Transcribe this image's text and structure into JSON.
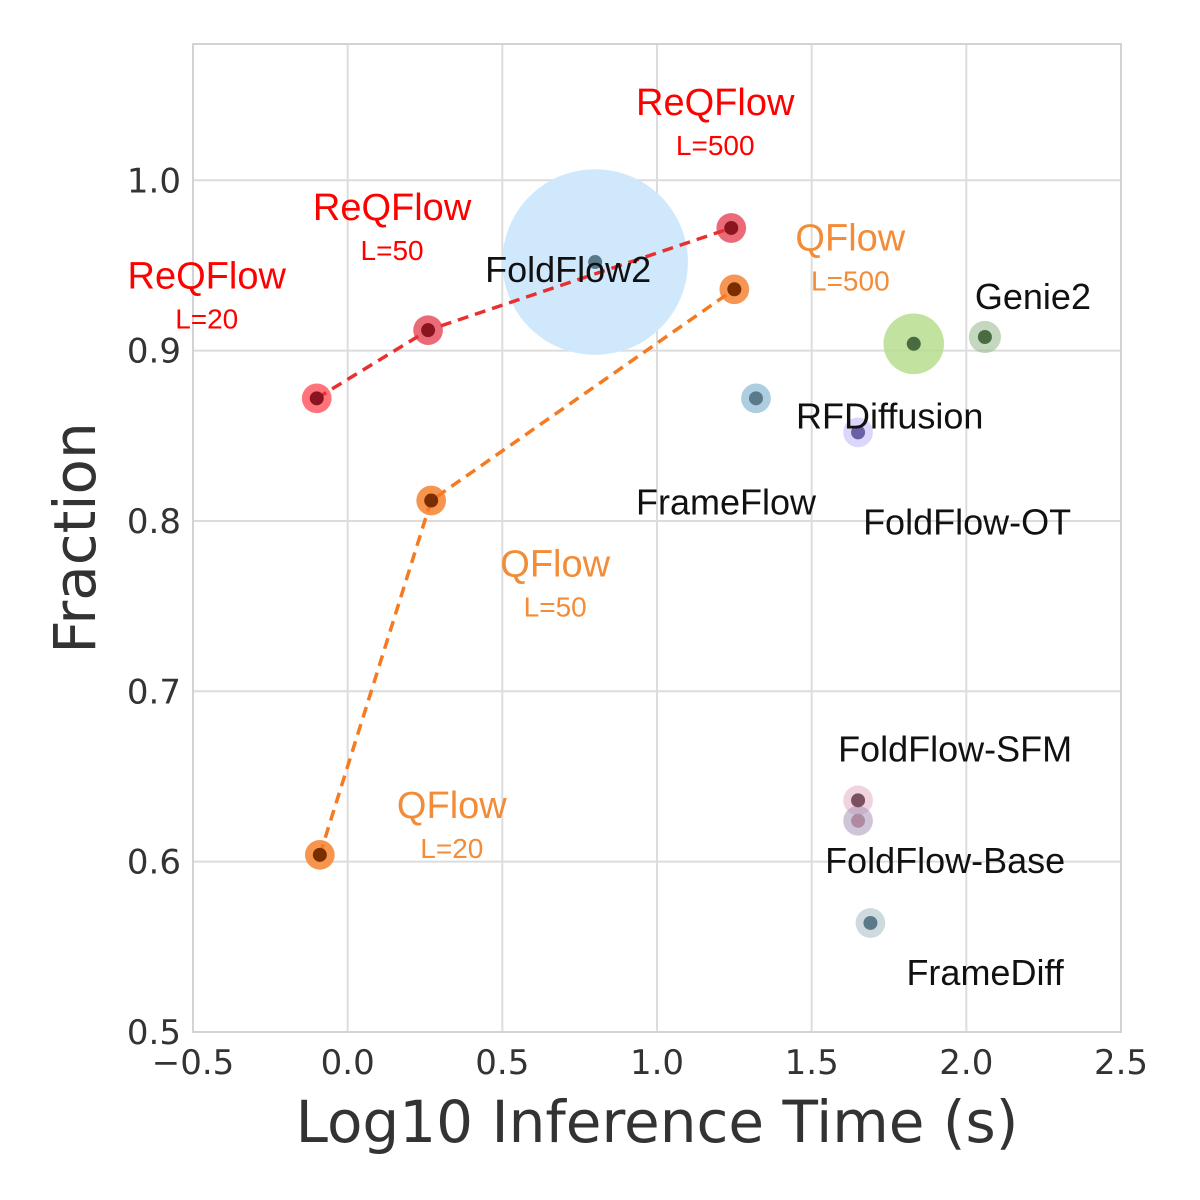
{
  "chart_data": {
    "type": "scatter",
    "title": "",
    "xlabel": "Log10 Inference Time (s)",
    "ylabel": "Fraction",
    "xlim": [
      -0.5,
      2.5
    ],
    "ylim": [
      0.5,
      1.08
    ],
    "xticks": [
      "−0.5",
      "0.0",
      "0.5",
      "1.0",
      "1.5",
      "2.0",
      "2.5"
    ],
    "xtick_values": [
      -0.5,
      0.0,
      0.5,
      1.0,
      1.5,
      2.0,
      2.5
    ],
    "yticks": [
      "0.5",
      "0.6",
      "0.7",
      "0.8",
      "0.9",
      "1.0"
    ],
    "ytick_values": [
      0.5,
      0.6,
      0.7,
      0.8,
      0.9,
      1.0
    ],
    "grid": true,
    "series_colors": {
      "reqflow": "#ff0000",
      "qflow": "#f28c38"
    },
    "lines": [
      {
        "series": "reqflow",
        "color": "#e83030",
        "points": [
          [
            -0.1,
            0.872
          ],
          [
            0.26,
            0.912
          ],
          [
            1.24,
            0.972
          ]
        ]
      },
      {
        "series": "qflow",
        "color": "#f57a22",
        "points": [
          [
            -0.09,
            0.604
          ],
          [
            0.27,
            0.812
          ],
          [
            1.25,
            0.936
          ]
        ]
      }
    ],
    "points": [
      {
        "x": 0.8,
        "y": 0.952,
        "bubble": 0.3,
        "color": "#cfe8fc",
        "opacity": 1.0,
        "label": "FoldFlow2",
        "label_color": "#111111"
      },
      {
        "x": 1.83,
        "y": 0.904,
        "bubble": 0.098,
        "color": "#b3dd8a",
        "opacity": 0.82,
        "label": "",
        "label_color": "#111111"
      },
      {
        "x": 2.06,
        "y": 0.908,
        "bubble": 0.052,
        "color": "#93b88a",
        "opacity": 0.55,
        "label": "Genie2",
        "label_color": "#111111"
      },
      {
        "x": 1.32,
        "y": 0.872,
        "bubble": 0.048,
        "color": "#6aa6c8",
        "opacity": 0.55,
        "label": "RFDiffusion",
        "label_color": "#111111"
      },
      {
        "x": 1.32,
        "y": 0.872,
        "bubble": 0.0,
        "color": "#6aa6c8",
        "opacity": 0.0,
        "label": "FrameFlow",
        "label_color": "#111111"
      },
      {
        "x": 1.65,
        "y": 0.852,
        "bubble": 0.048,
        "color": "#d5d0fb",
        "opacity": 0.85,
        "label": "FoldFlow-OT",
        "label_color": "#111111"
      },
      {
        "x": 1.65,
        "y": 0.636,
        "bubble": 0.048,
        "color": "#e8b6cc",
        "opacity": 0.6,
        "label": "FoldFlow-SFM",
        "label_color": "#111111"
      },
      {
        "x": 1.65,
        "y": 0.624,
        "bubble": 0.048,
        "color": "#a597b8",
        "opacity": 0.55,
        "label": "FoldFlow-Base",
        "label_color": "#111111"
      },
      {
        "x": 1.69,
        "y": 0.564,
        "bubble": 0.048,
        "color": "#c5d3d8",
        "opacity": 0.85,
        "label": "FrameDiff",
        "label_color": "#111111"
      },
      {
        "x": -0.1,
        "y": 0.872,
        "bubble": 0.048,
        "color": "#ff5a64",
        "opacity": 0.85,
        "label": "ReQFlow",
        "sublabel": "L=20",
        "label_color": "#ff0000"
      },
      {
        "x": 0.26,
        "y": 0.912,
        "bubble": 0.048,
        "color": "#e8505f",
        "opacity": 0.85,
        "label": "ReQFlow",
        "sublabel": "L=50",
        "label_color": "#ff0000"
      },
      {
        "x": 1.24,
        "y": 0.972,
        "bubble": 0.048,
        "color": "#e8505f",
        "opacity": 0.85,
        "label": "ReQFlow",
        "sublabel": "L=500",
        "label_color": "#ff0000"
      },
      {
        "x": -0.09,
        "y": 0.604,
        "bubble": 0.048,
        "color": "#f78a3a",
        "opacity": 0.9,
        "label": "QFlow",
        "sublabel": "L=20",
        "label_color": "#f28c38"
      },
      {
        "x": 0.27,
        "y": 0.812,
        "bubble": 0.048,
        "color": "#f78a3a",
        "opacity": 0.9,
        "label": "QFlow",
        "sublabel": "L=50",
        "label_color": "#f28c38"
      },
      {
        "x": 1.25,
        "y": 0.936,
        "bubble": 0.048,
        "color": "#f57a2a",
        "opacity": 0.8,
        "label": "QFlow",
        "sublabel": "L=500",
        "label_color": "#f28c38"
      }
    ]
  }
}
